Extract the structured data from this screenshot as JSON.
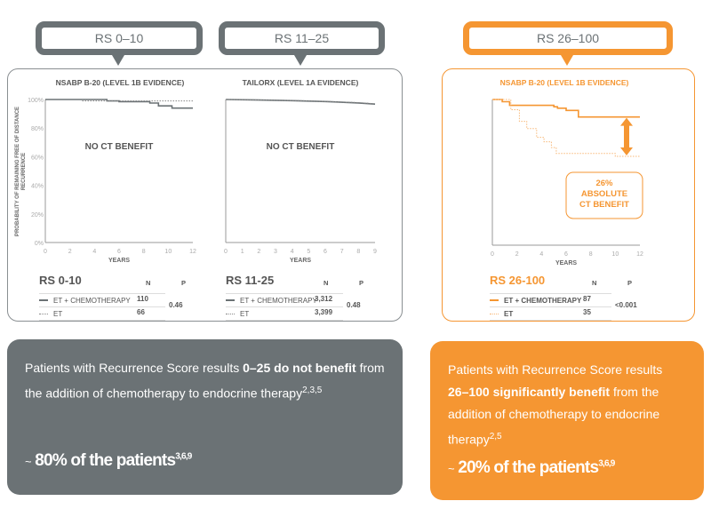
{
  "tabs": [
    {
      "label": "RS 0–10"
    },
    {
      "label": "RS 11–25"
    },
    {
      "label": "RS 26–100"
    }
  ],
  "colors": {
    "gray": "#6b7275",
    "orange": "#f59632"
  },
  "chart_data": [
    {
      "type": "line",
      "title": "NSABP B-20 (LEVEL 1B EVIDENCE)",
      "ylabel": "PROBABILITY OF REMAINING FREE OF DISTANCE RECURRENCE",
      "xlabel": "YEARS",
      "xlim": [
        0,
        12
      ],
      "ylim": [
        0,
        100
      ],
      "xticks": [
        0,
        2,
        4,
        6,
        8,
        10,
        12
      ],
      "yticks": [
        "0%",
        "20%",
        "40%",
        "60%",
        "80%",
        "100%"
      ],
      "annotation": "NO CT BENEFIT",
      "series": [
        {
          "name": "ET + CHEMOTHERAPY",
          "style": "solid",
          "points": [
            [
              0,
              100
            ],
            [
              5,
              100
            ],
            [
              5,
              99
            ],
            [
              6,
              99
            ],
            [
              6,
              98.5
            ],
            [
              8.5,
              98.5
            ],
            [
              8.5,
              97.5
            ],
            [
              9.2,
              97.5
            ],
            [
              9.2,
              95.5
            ],
            [
              10.3,
              95.5
            ],
            [
              10.3,
              94
            ],
            [
              12,
              94
            ]
          ]
        },
        {
          "name": "ET",
          "style": "dotted",
          "points": [
            [
              3,
              99
            ],
            [
              12,
              99
            ]
          ]
        }
      ],
      "table": {
        "group": "RS 0-10",
        "headers": [
          "N",
          "P"
        ],
        "rows": [
          {
            "name": "ET + CHEMOTHERAPY",
            "n": "110"
          },
          {
            "name": "ET",
            "n": "66"
          }
        ],
        "p": "0.46"
      }
    },
    {
      "type": "line",
      "title": "TAILORX (LEVEL 1A EVIDENCE)",
      "xlabel": "YEARS",
      "xlim": [
        0,
        9
      ],
      "ylim": [
        0,
        100
      ],
      "xticks": [
        0,
        1,
        2,
        3,
        4,
        5,
        6,
        7,
        8,
        9
      ],
      "annotation": "NO CT BENEFIT",
      "series": [
        {
          "name": "ET + CHEMOTHERAPY",
          "style": "solid",
          "points": [
            [
              0,
              100
            ],
            [
              2,
              99.6
            ],
            [
              4,
              99.2
            ],
            [
              6,
              98.6
            ],
            [
              8,
              97.6
            ],
            [
              9,
              96.8
            ]
          ]
        },
        {
          "name": "ET",
          "style": "dotted",
          "points": [
            [
              0,
              100
            ],
            [
              2,
              99.7
            ],
            [
              4,
              99.3
            ],
            [
              6,
              98.7
            ],
            [
              8,
              97.8
            ],
            [
              9,
              97
            ]
          ]
        }
      ],
      "table": {
        "group": "RS 11-25",
        "headers": [
          "N",
          "P"
        ],
        "rows": [
          {
            "name": "ET + CHEMOTHERAPY",
            "n": "3,312"
          },
          {
            "name": "ET",
            "n": "3,399"
          }
        ],
        "p": "0.48"
      }
    },
    {
      "type": "line",
      "title": "NSABP B-20 (LEVEL 1B EVIDENCE)",
      "xlabel": "YEARS",
      "xlim": [
        0,
        12
      ],
      "ylim": [
        0,
        100
      ],
      "xticks": [
        0,
        2,
        4,
        6,
        8,
        10,
        12
      ],
      "annotation": "26% ABSOLUTE CT BENEFIT",
      "series": [
        {
          "name": "ET + CHEMOTHERAPY",
          "style": "solid",
          "points": [
            [
              0,
              100
            ],
            [
              0.8,
              100
            ],
            [
              0.8,
              98.5
            ],
            [
              1.4,
              98.5
            ],
            [
              1.4,
              96
            ],
            [
              5,
              96
            ],
            [
              5,
              95
            ],
            [
              5.3,
              95
            ],
            [
              5.3,
              94
            ],
            [
              6,
              94
            ],
            [
              6,
              92.5
            ],
            [
              7,
              92.5
            ],
            [
              7,
              88
            ],
            [
              12,
              88
            ]
          ]
        },
        {
          "name": "ET",
          "style": "dotted",
          "points": [
            [
              0,
              100
            ],
            [
              1.5,
              100
            ],
            [
              1.5,
              93
            ],
            [
              2.2,
              93
            ],
            [
              2.2,
              85
            ],
            [
              2.8,
              85
            ],
            [
              2.8,
              80
            ],
            [
              3.6,
              80
            ],
            [
              3.6,
              74
            ],
            [
              4.2,
              74
            ],
            [
              4.2,
              71
            ],
            [
              4.8,
              71
            ],
            [
              4.8,
              67
            ],
            [
              5.2,
              67
            ],
            [
              5.2,
              63
            ],
            [
              10,
              63
            ],
            [
              10,
              61
            ],
            [
              12,
              61
            ]
          ]
        }
      ],
      "table": {
        "group": "RS 26-100",
        "headers": [
          "N",
          "P"
        ],
        "rows": [
          {
            "name": "ET + CHEMOTHERAPY",
            "n": "87"
          },
          {
            "name": "ET",
            "n": "35"
          }
        ],
        "p": "<0.001"
      }
    }
  ],
  "boxes": [
    {
      "pre": "Patients with Recurrence Score results ",
      "bold1": "0–25 do not benefit",
      "post": " from the addition of chemotherapy to endocrine therapy",
      "sup": "2,3,5",
      "tilde": "~",
      "big": "80% of the patients",
      "big_sup": "3,6,9"
    },
    {
      "pre": "Patients with Recurrence Score results ",
      "bold1": "26–100 significantly benefit",
      "post": " from the addition of chemotherapy to endocrine therapy",
      "sup": "2,5",
      "tilde": "~",
      "big": "20% of the patients",
      "big_sup": "3,6,9"
    }
  ]
}
